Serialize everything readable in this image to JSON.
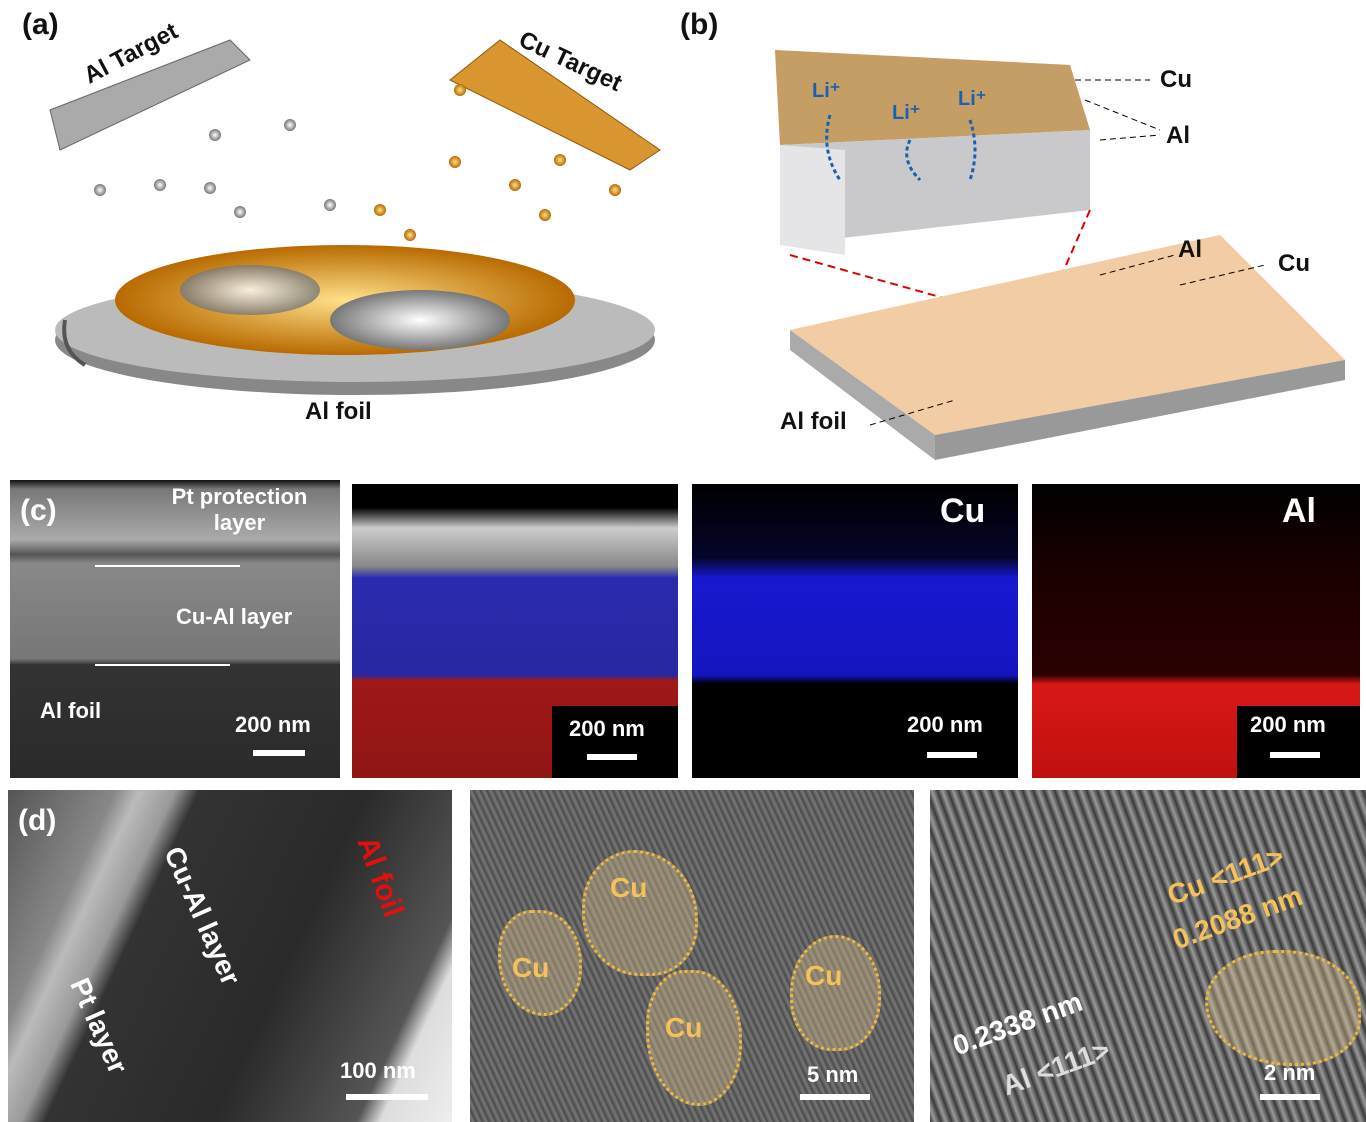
{
  "panel_a": {
    "label": "(a)",
    "al_target": "Al Target",
    "cu_target": "Cu Target",
    "al_foil": "Al foil"
  },
  "panel_b": {
    "label": "(b)",
    "cu": "Cu",
    "al": "Al",
    "li": "Li⁺",
    "al2": "Al",
    "cu2": "Cu",
    "al_foil": "Al foil"
  },
  "panel_c": {
    "label": "(c)",
    "pt_layer": "Pt protection layer",
    "cual_layer": "Cu-Al layer",
    "al_foil": "Al foil",
    "scale": "200 nm",
    "map_cu": "Cu",
    "map_al": "Al",
    "colors": {
      "cu": "#1a1aff",
      "al": "#e01010"
    }
  },
  "panel_d": {
    "label": "(d)",
    "al_foil": "Al foil",
    "cual_layer": "Cu-Al layer",
    "pt_layer": "Pt layer",
    "scale1": "100 nm",
    "cu": "Cu",
    "scale2": "5 nm",
    "cu111": "Cu <111>",
    "d_cu": "0.2088 nm",
    "d_al": "0.2338 nm",
    "al111": "Al <111>",
    "scale3": "2 nm",
    "accent": "#f5c15a"
  }
}
